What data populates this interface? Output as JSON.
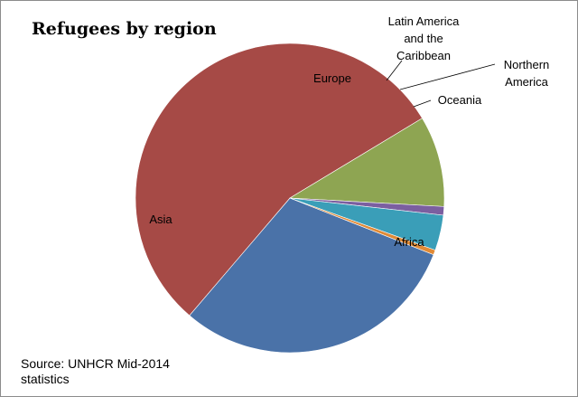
{
  "chart_data": {
    "type": "pie",
    "title": "Refugees by region",
    "slices": [
      {
        "label": "Africa",
        "value": 30.3,
        "color": "#4a72a8"
      },
      {
        "label": "Asia",
        "value": 55.1,
        "color": "#a64a46"
      },
      {
        "label": "Europe",
        "value": 9.5,
        "color": "#8ea552"
      },
      {
        "label": "Latin America and the Caribbean",
        "value": 0.9,
        "color": "#7b5fa0"
      },
      {
        "label": "Northern America",
        "value": 3.7,
        "color": "#3a9eb8"
      },
      {
        "label": "Oceania",
        "value": 0.5,
        "color": "#e08a36"
      }
    ],
    "legend": "none",
    "source": "Source: UNHCR Mid-2014 statistics"
  }
}
